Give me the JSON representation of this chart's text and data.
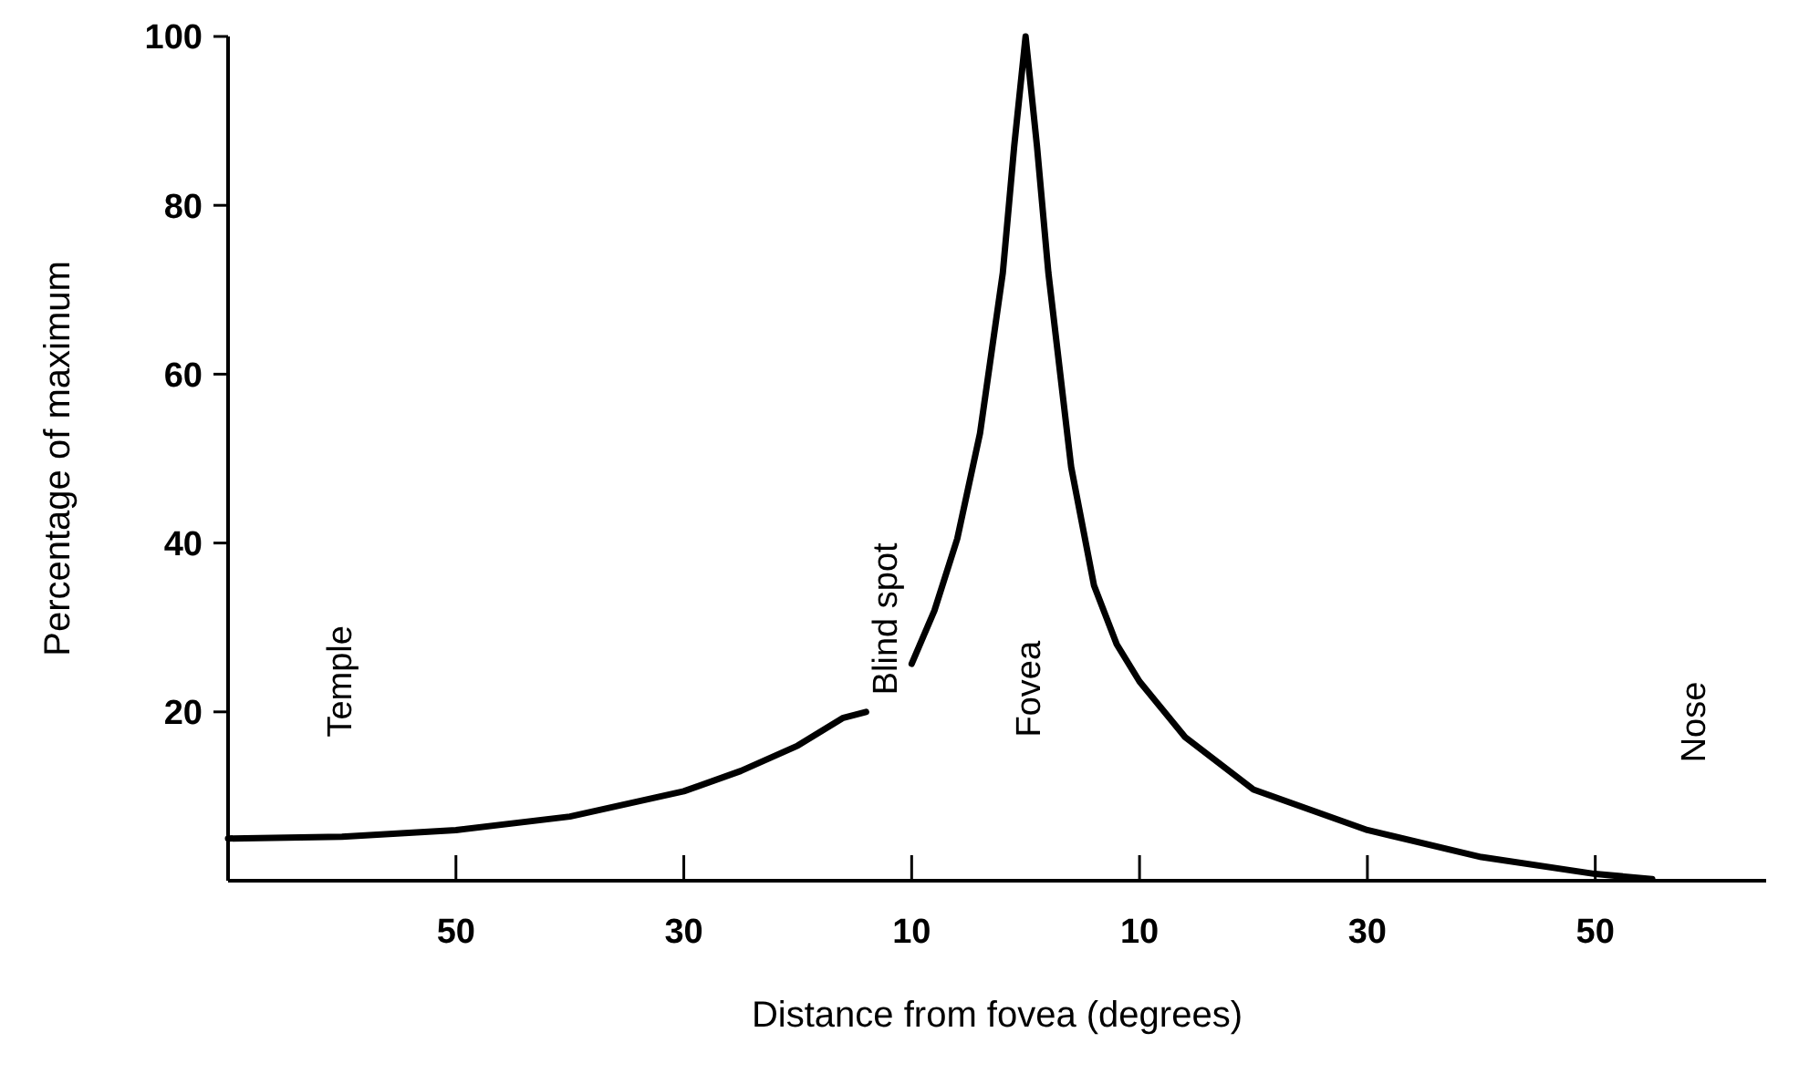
{
  "chart_data": {
    "type": "line",
    "xlabel": "Distance from fovea (degrees)",
    "ylabel": "Percentage of maximum",
    "x": [
      -70,
      -60,
      -50,
      -40,
      -30,
      -25,
      -20,
      -16,
      -14,
      -12,
      -10,
      -8,
      -6,
      -4,
      -2,
      -1,
      0,
      1,
      2,
      4,
      6,
      8,
      10,
      14,
      20,
      30,
      40,
      50,
      55
    ],
    "series": [
      {
        "color": "#000000",
        "values": [
          5,
          5.2,
          6,
          7.6,
          10.6,
          13,
          16,
          19.3,
          20,
          null,
          25.7,
          32,
          40.5,
          53,
          72,
          87,
          100,
          87,
          72,
          49,
          35,
          28,
          23.6,
          17,
          10.8,
          6,
          2.8,
          0.8,
          0.2
        ]
      }
    ],
    "xlim": [
      -70,
      65
    ],
    "xticks": [
      {
        "value": -50,
        "label": "50"
      },
      {
        "value": -30,
        "label": "30"
      },
      {
        "value": -10,
        "label": "10"
      },
      {
        "value": 10,
        "label": "10"
      },
      {
        "value": 30,
        "label": "30"
      },
      {
        "value": 50,
        "label": "50"
      }
    ],
    "ylim": [
      0,
      100
    ],
    "yticks": [
      20,
      40,
      60,
      80,
      100
    ],
    "grid": false,
    "marker": "none",
    "line_style": "solid",
    "annotations": [
      "Temple",
      "Blind spot",
      "Fovea",
      "Nose"
    ]
  }
}
